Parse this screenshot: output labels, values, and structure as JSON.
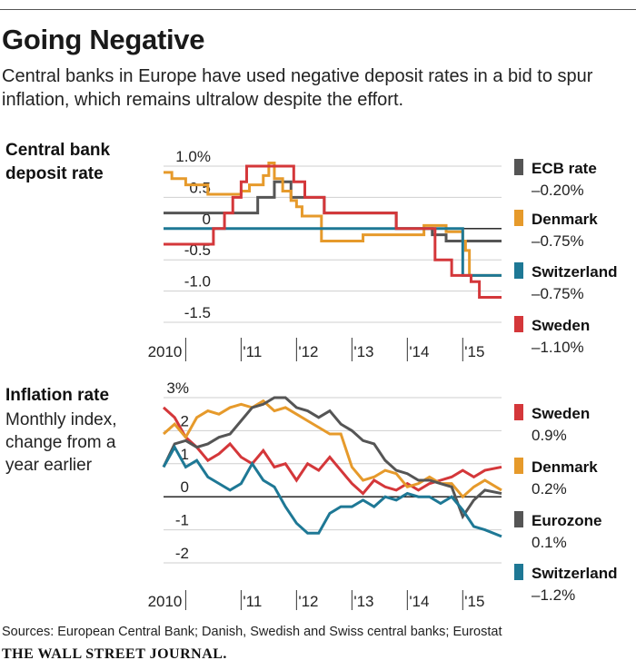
{
  "header": {
    "title": "Going Negative",
    "subtitle": "Central banks in Europe have used negative deposit rates in a bid to spur inflation, which remains ultralow despite the effort."
  },
  "colors": {
    "ecb": "#555555",
    "denmark": "#E69A2B",
    "switzerland": "#1E7895",
    "sweden": "#D4373A",
    "grid": "#cfcfcf",
    "axis": "#111111"
  },
  "footer": {
    "source": "Sources: European Central Bank; Danish, Swedish and Swiss central banks; Eurostat",
    "brand": "THE WALL STREET JOURNAL."
  },
  "chart_data": [
    {
      "type": "line",
      "title": "Central bank deposit rate",
      "title_lines": [
        "Central bank",
        "deposit rate"
      ],
      "ylabel": "%",
      "ylim": [
        -1.5,
        1.0
      ],
      "xlim": [
        2009.6,
        2015.7
      ],
      "yticks": [
        1.0,
        0.5,
        0,
        -0.5,
        -1.0,
        -1.5
      ],
      "ytick_labels": [
        "1.0%",
        "0.5",
        "0",
        "-0.5",
        "-1.0",
        "-1.5"
      ],
      "xticks": [
        2010,
        2011,
        2012,
        2013,
        2014,
        2015
      ],
      "xtick_labels": [
        "2010",
        "'11",
        "'12",
        "'13",
        "'14",
        "'15"
      ],
      "series": [
        {
          "name": "ECB rate",
          "value_label": "–0.20%",
          "color_key": "ecb",
          "x": [
            2009.6,
            2011.3,
            2011.6,
            2011.9,
            2012.5,
            2013.8,
            2014.45,
            2014.7,
            2015.7
          ],
          "y": [
            0.25,
            0.5,
            0.75,
            0.5,
            0.25,
            0.0,
            -0.1,
            -0.2,
            -0.2
          ]
        },
        {
          "name": "Denmark",
          "value_label": "–0.75%",
          "color_key": "denmark",
          "x": [
            2009.6,
            2009.75,
            2010.0,
            2010.4,
            2011.0,
            2011.15,
            2011.4,
            2011.5,
            2011.6,
            2011.75,
            2011.9,
            2012.0,
            2012.1,
            2012.45,
            2013.2,
            2013.35,
            2014.3,
            2014.7,
            2015.0,
            2015.05,
            2015.12,
            2015.7
          ],
          "y": [
            0.9,
            0.8,
            0.7,
            0.55,
            0.6,
            0.7,
            0.85,
            1.05,
            0.8,
            0.6,
            0.45,
            0.35,
            0.2,
            -0.2,
            -0.1,
            -0.1,
            0.05,
            -0.05,
            -0.2,
            -0.35,
            -0.75,
            -0.75
          ]
        },
        {
          "name": "Switzerland",
          "value_label": "–0.75%",
          "color_key": "switzerland",
          "x": [
            2009.6,
            2014.95,
            2015.0,
            2015.7
          ],
          "y": [
            0.0,
            0.0,
            -0.75,
            -0.75
          ]
        },
        {
          "name": "Sweden",
          "value_label": "–1.10%",
          "color_key": "sweden",
          "x": [
            2009.6,
            2010.5,
            2010.7,
            2010.85,
            2011.0,
            2011.1,
            2011.5,
            2011.95,
            2012.15,
            2012.5,
            2012.95,
            2013.8,
            2014.5,
            2014.8,
            2015.15,
            2015.3,
            2015.7
          ],
          "y": [
            -0.25,
            0.0,
            0.25,
            0.5,
            0.75,
            1.0,
            1.0,
            0.75,
            0.5,
            0.25,
            0.25,
            0.0,
            -0.5,
            -0.75,
            -0.85,
            -1.1,
            -1.1
          ]
        }
      ]
    },
    {
      "type": "line",
      "title": "Inflation rate",
      "subtitle_lines": [
        "Monthly index,",
        "change from a",
        "year earlier"
      ],
      "ylabel": "%",
      "ylim": [
        -2,
        3
      ],
      "xlim": [
        2009.6,
        2015.7
      ],
      "yticks": [
        3,
        2,
        1,
        0,
        -1,
        -2
      ],
      "ytick_labels": [
        "3%",
        "2",
        "1",
        "0",
        "-1",
        "-2"
      ],
      "xticks": [
        2010,
        2011,
        2012,
        2013,
        2014,
        2015
      ],
      "xtick_labels": [
        "2010",
        "'11",
        "'12",
        "'13",
        "'14",
        "'15"
      ],
      "series": [
        {
          "name": "Sweden",
          "value_label": "0.9%",
          "color_key": "sweden",
          "x": [
            2009.6,
            2009.8,
            2010.0,
            2010.2,
            2010.4,
            2010.6,
            2010.8,
            2011.0,
            2011.2,
            2011.4,
            2011.6,
            2011.8,
            2012.0,
            2012.2,
            2012.4,
            2012.6,
            2012.8,
            2013.0,
            2013.2,
            2013.4,
            2013.6,
            2013.8,
            2014.0,
            2014.2,
            2014.4,
            2014.6,
            2014.8,
            2015.0,
            2015.2,
            2015.4,
            2015.7
          ],
          "y": [
            2.7,
            2.4,
            1.8,
            1.5,
            1.1,
            1.3,
            1.6,
            1.2,
            1.0,
            1.4,
            0.9,
            1.0,
            0.5,
            1.0,
            0.8,
            1.2,
            0.8,
            0.4,
            0.1,
            0.5,
            0.3,
            0.2,
            0.4,
            0.2,
            0.4,
            0.5,
            0.6,
            0.8,
            0.6,
            0.8,
            0.9
          ]
        },
        {
          "name": "Denmark",
          "value_label": "0.2%",
          "color_key": "denmark",
          "x": [
            2009.6,
            2009.8,
            2010.0,
            2010.2,
            2010.4,
            2010.6,
            2010.8,
            2011.0,
            2011.2,
            2011.4,
            2011.6,
            2011.8,
            2012.0,
            2012.2,
            2012.4,
            2012.6,
            2012.8,
            2013.0,
            2013.2,
            2013.4,
            2013.6,
            2013.8,
            2014.0,
            2014.2,
            2014.4,
            2014.6,
            2014.8,
            2015.0,
            2015.2,
            2015.4,
            2015.7
          ],
          "y": [
            1.9,
            2.2,
            1.8,
            2.4,
            2.6,
            2.5,
            2.7,
            2.8,
            2.7,
            2.9,
            2.6,
            2.7,
            2.5,
            2.3,
            2.1,
            1.9,
            1.9,
            0.9,
            0.5,
            0.6,
            0.8,
            0.7,
            0.3,
            0.4,
            0.6,
            0.4,
            0.4,
            0.0,
            0.3,
            0.5,
            0.2
          ]
        },
        {
          "name": "Eurozone",
          "value_label": "0.1%",
          "color_key": "ecb",
          "x": [
            2009.6,
            2009.8,
            2010.0,
            2010.2,
            2010.4,
            2010.6,
            2010.8,
            2011.0,
            2011.2,
            2011.4,
            2011.6,
            2011.8,
            2012.0,
            2012.2,
            2012.4,
            2012.6,
            2012.8,
            2013.0,
            2013.2,
            2013.4,
            2013.6,
            2013.8,
            2014.0,
            2014.2,
            2014.4,
            2014.6,
            2014.8,
            2015.0,
            2015.2,
            2015.4,
            2015.7
          ],
          "y": [
            0.9,
            1.6,
            1.7,
            1.5,
            1.6,
            1.8,
            1.9,
            2.3,
            2.7,
            2.8,
            3.0,
            3.0,
            2.7,
            2.6,
            2.4,
            2.6,
            2.2,
            2.0,
            1.7,
            1.6,
            1.1,
            0.8,
            0.7,
            0.5,
            0.5,
            0.4,
            0.3,
            -0.6,
            -0.1,
            0.2,
            0.1
          ]
        },
        {
          "name": "Switzerland",
          "value_label": "–1.2%",
          "color_key": "switzerland",
          "x": [
            2009.6,
            2009.8,
            2010.0,
            2010.2,
            2010.4,
            2010.6,
            2010.8,
            2011.0,
            2011.2,
            2011.4,
            2011.6,
            2011.8,
            2012.0,
            2012.2,
            2012.4,
            2012.6,
            2012.8,
            2013.0,
            2013.2,
            2013.4,
            2013.6,
            2013.8,
            2014.0,
            2014.2,
            2014.4,
            2014.6,
            2014.8,
            2015.0,
            2015.2,
            2015.4,
            2015.7
          ],
          "y": [
            0.9,
            1.5,
            0.9,
            1.1,
            0.6,
            0.4,
            0.2,
            0.4,
            1.0,
            0.5,
            0.3,
            -0.3,
            -0.8,
            -1.1,
            -1.1,
            -0.5,
            -0.3,
            -0.3,
            -0.1,
            -0.3,
            0.0,
            -0.1,
            0.1,
            0.0,
            0.0,
            -0.2,
            0.0,
            -0.4,
            -0.9,
            -1.0,
            -1.2
          ]
        }
      ]
    }
  ]
}
